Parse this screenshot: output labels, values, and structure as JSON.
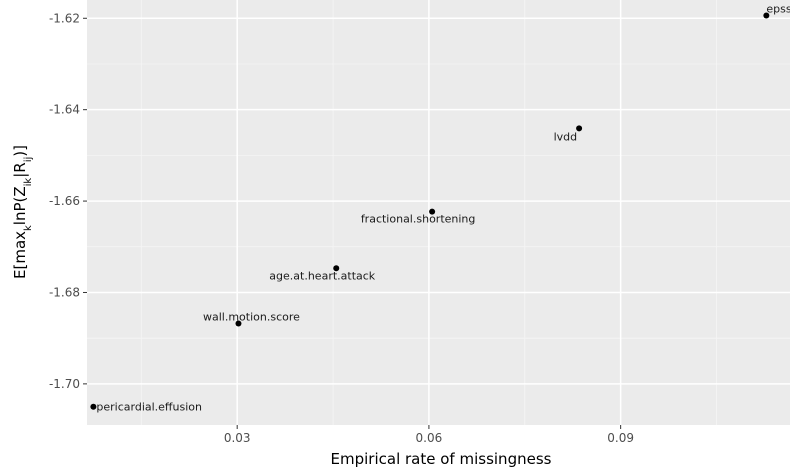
{
  "chart_data": {
    "type": "scatter",
    "xlabel": "Empirical rate of missingness",
    "ylabel": {
      "parts": [
        {
          "t": "E[max",
          "s": "normal"
        },
        {
          "t": "k",
          "s": "sub"
        },
        {
          "t": "lnP(Z",
          "s": "normal"
        },
        {
          "t": "ik",
          "s": "sub"
        },
        {
          "t": "|R",
          "s": "normal"
        },
        {
          "t": "ij",
          "s": "sub"
        },
        {
          "t": ")]",
          "s": "normal"
        }
      ]
    },
    "xlim": [
      0.0065,
      0.1165
    ],
    "ylim": [
      -1.709,
      -1.616
    ],
    "x_ticks": [
      0.03,
      0.06,
      0.09
    ],
    "x_tick_labels": [
      "0.03",
      "0.06",
      "0.09"
    ],
    "y_ticks": [
      -1.62,
      -1.64,
      -1.66,
      -1.68,
      -1.7
    ],
    "y_tick_labels": [
      "-1.62",
      "-1.64",
      "-1.66",
      "-1.68",
      "-1.70"
    ],
    "grid": true,
    "points": [
      {
        "label": "pericardial.effusion",
        "x": 0.0075,
        "y": -1.705,
        "anchor": "right"
      },
      {
        "label": "wall.motion.score",
        "x": 0.0302,
        "y": -1.6868,
        "anchor": "above"
      },
      {
        "label": "age.at.heart.attack",
        "x": 0.0455,
        "y": -1.6747,
        "anchor": "below"
      },
      {
        "label": "fractional.shortening",
        "x": 0.0605,
        "y": -1.6623,
        "anchor": "below"
      },
      {
        "label": "lvdd",
        "x": 0.0835,
        "y": -1.6441,
        "anchor": "below-left"
      },
      {
        "label": "epss",
        "x": 0.1128,
        "y": -1.6194,
        "anchor": "above-right"
      }
    ],
    "colors": {
      "panel": "#ebebeb",
      "grid_major": "#ffffff",
      "grid_minor": "#f5f5f5",
      "point": "#000000"
    }
  }
}
